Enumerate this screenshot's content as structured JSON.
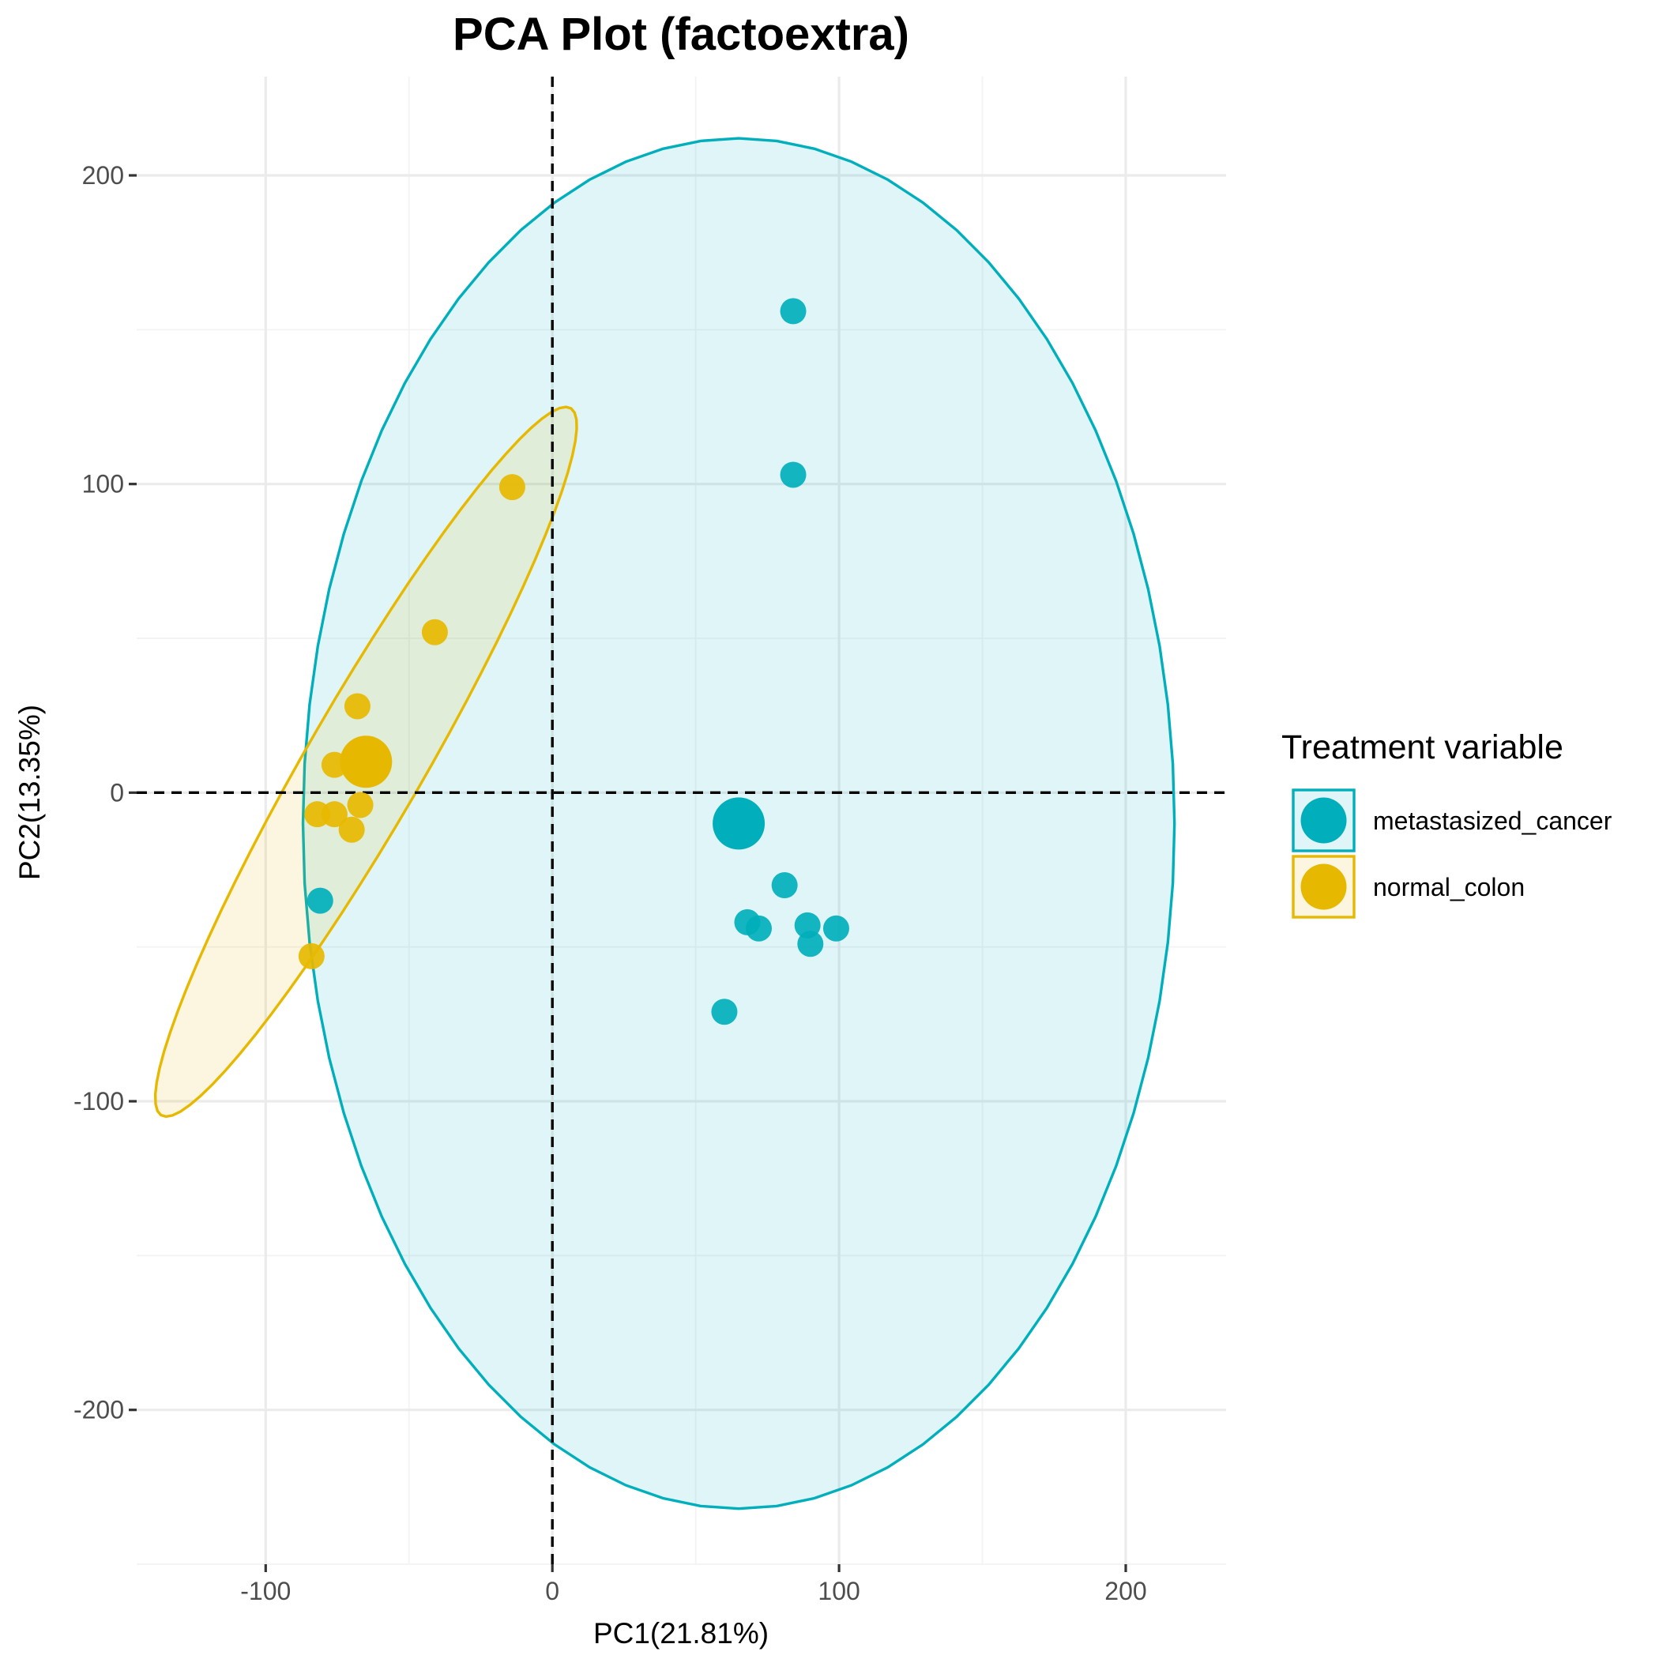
{
  "chart_data": {
    "type": "scatter",
    "title": "PCA Plot (factoextra)",
    "xlabel": "PC1(21.81%)",
    "ylabel": "PC2(13.35%)",
    "xlim": [
      -145,
      235
    ],
    "ylim": [
      -250,
      232
    ],
    "x_ticks": [
      -100,
      0,
      100,
      200
    ],
    "y_ticks": [
      -200,
      -100,
      0,
      100,
      200
    ],
    "x_tick_labels": [
      "-100",
      "0",
      "100",
      "200"
    ],
    "y_tick_labels": [
      "-200",
      "-100",
      "0",
      "100",
      "200"
    ],
    "grid": true,
    "reference_lines": {
      "x": 0,
      "y": 0
    },
    "legend": {
      "title": "Treatment variable",
      "position": "right"
    },
    "series": [
      {
        "name": "metastasized_cancer",
        "color": "#00AFBB",
        "points": [
          {
            "x": 84,
            "y": 156
          },
          {
            "x": 84,
            "y": 103
          },
          {
            "x": 81,
            "y": -30
          },
          {
            "x": 68,
            "y": -42
          },
          {
            "x": 72,
            "y": -44
          },
          {
            "x": 89,
            "y": -43
          },
          {
            "x": 90,
            "y": -49
          },
          {
            "x": 99,
            "y": -44
          },
          {
            "x": 60,
            "y": -71
          },
          {
            "x": -81,
            "y": -35
          }
        ],
        "centroid": {
          "x": 65,
          "y": -10
        },
        "ellipse": {
          "cx": 65,
          "cy": -10,
          "rx": 152,
          "ry": 222,
          "angle_deg": 0
        }
      },
      {
        "name": "normal_colon",
        "color": "#E7B800",
        "points": [
          {
            "x": -14,
            "y": 99
          },
          {
            "x": -41,
            "y": 52
          },
          {
            "x": -68,
            "y": 28
          },
          {
            "x": -76,
            "y": 9
          },
          {
            "x": -67,
            "y": -4
          },
          {
            "x": -76,
            "y": -7
          },
          {
            "x": -82,
            "y": -7
          },
          {
            "x": -70,
            "y": -12
          },
          {
            "x": -84,
            "y": -53
          }
        ],
        "centroid": {
          "x": -65,
          "y": 10
        },
        "ellipse": {
          "cx": -65,
          "cy": 10,
          "rx": 135,
          "ry": 20,
          "angle_deg": 58
        }
      }
    ]
  }
}
